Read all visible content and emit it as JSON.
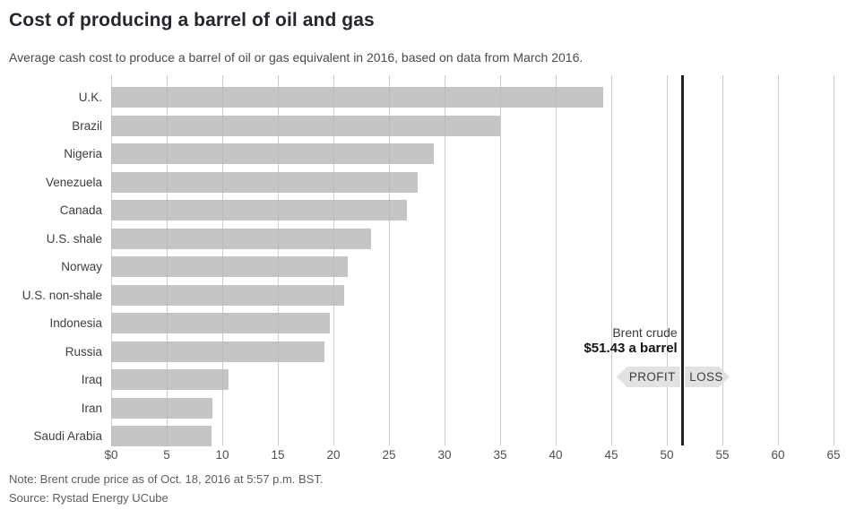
{
  "page": {
    "title": "Cost of producing a barrel of oil and gas",
    "subtitle": "Average cash cost to produce a barrel of oil or gas equivalent in 2016, based on data from March 2016.",
    "note": "Note: Brent crude price as of Oct. 18, 2016 at 5:57 p.m. BST.",
    "source": "Source: Rystad Energy UCube"
  },
  "chart_data": {
    "type": "bar",
    "orientation": "horizontal",
    "title": "Cost of producing a barrel of oil and gas",
    "subtitle": "Average cash cost to produce a barrel of oil or gas equivalent in 2016, based on data from March 2016.",
    "categories": [
      "U.K.",
      "Brazil",
      "Nigeria",
      "Venezuela",
      "Canada",
      "U.S. shale",
      "Norway",
      "U.S. non-shale",
      "Indonesia",
      "Russia",
      "Iraq",
      "Iran",
      "Saudi Arabia"
    ],
    "values": [
      44.3,
      35.0,
      29.0,
      27.6,
      26.6,
      23.4,
      21.3,
      21.0,
      19.7,
      19.2,
      10.6,
      9.1,
      9.0
    ],
    "xlim": [
      0,
      65
    ],
    "x_tick_values": [
      0,
      5,
      10,
      15,
      20,
      25,
      30,
      35,
      40,
      45,
      50,
      55,
      60,
      65
    ],
    "x_tick_labels": [
      "$0",
      "5",
      "10",
      "15",
      "20",
      "25",
      "30",
      "35",
      "40",
      "45",
      "50",
      "55",
      "60",
      "65"
    ],
    "grid": true,
    "legend": "none",
    "bar_color": "#c7c7c7",
    "gridline_color": "#cccccc",
    "reference_line": {
      "value": 51.43,
      "label_line1": "Brent crude",
      "label_line2": "$51.43 a barrel",
      "color": "#222222"
    },
    "badge": {
      "left": "PROFIT",
      "right": "LOSS"
    }
  }
}
